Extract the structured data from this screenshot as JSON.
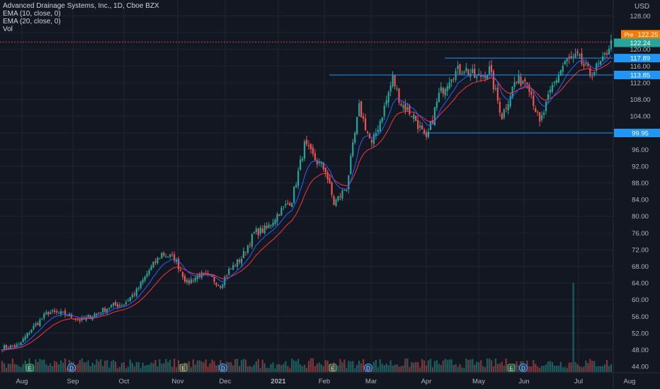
{
  "legend": {
    "title": "Advanced Drainage Systems, Inc., 1D, Cboe BZX",
    "ema10": "EMA (10, close, 0)",
    "ema20": "EMA (20, close, 0)",
    "vol": "Vol"
  },
  "currency": "USD",
  "colors": {
    "background": "#131722",
    "grid": "#1f2433",
    "up": "#26a69a",
    "down": "#ef5350",
    "ema10": "#2962ff",
    "ema20": "#f23645",
    "level": "#2196f3",
    "pre": "#f57c00"
  },
  "chart_data": {
    "type": "candlestick",
    "ylim": [
      42,
      130
    ],
    "y_ticks": [
      "128.00",
      "124.00",
      "120.00",
      "116.00",
      "112.00",
      "108.00",
      "104.00",
      "100.00",
      "96.00",
      "92.00",
      "88.00",
      "84.00",
      "80.00",
      "76.00",
      "72.00",
      "68.00",
      "64.00",
      "60.00",
      "56.00",
      "52.00",
      "48.00",
      "44.00"
    ],
    "x_labels": [
      "Aug",
      "Sep",
      "Oct",
      "Nov",
      "Dec",
      "2021",
      "Feb",
      "Mar",
      "Apr",
      "May",
      "Jun",
      "Jul",
      "Aug"
    ],
    "price_key_points": [
      [
        0,
        48.5
      ],
      [
        8,
        49
      ],
      [
        14,
        53
      ],
      [
        22,
        57
      ],
      [
        30,
        56.5
      ],
      [
        38,
        55
      ],
      [
        46,
        57
      ],
      [
        52,
        58.5
      ],
      [
        58,
        59
      ],
      [
        64,
        62
      ],
      [
        70,
        67
      ],
      [
        76,
        71
      ],
      [
        82,
        70
      ],
      [
        88,
        64
      ],
      [
        94,
        66
      ],
      [
        100,
        65
      ],
      [
        104,
        63.5
      ],
      [
        108,
        67
      ],
      [
        114,
        70
      ],
      [
        120,
        76
      ],
      [
        126,
        77
      ],
      [
        132,
        81
      ],
      [
        138,
        84
      ],
      [
        144,
        97
      ],
      [
        150,
        93
      ],
      [
        154,
        91
      ],
      [
        158,
        83
      ],
      [
        164,
        87
      ],
      [
        170,
        106
      ],
      [
        176,
        97
      ],
      [
        182,
        106
      ],
      [
        186,
        113
      ],
      [
        190,
        107
      ],
      [
        196,
        104
      ],
      [
        202,
        98
      ],
      [
        208,
        109
      ],
      [
        214,
        114
      ],
      [
        220,
        115.5
      ],
      [
        226,
        113
      ],
      [
        232,
        115
      ],
      [
        238,
        104
      ],
      [
        244,
        112
      ],
      [
        250,
        113
      ],
      [
        256,
        102
      ],
      [
        262,
        111
      ],
      [
        268,
        117
      ],
      [
        274,
        118
      ],
      [
        280,
        114
      ],
      [
        286,
        117
      ],
      [
        290,
        122.24
      ]
    ],
    "volume_spike_bar": 272,
    "volume_spike_level": 0.97,
    "horizontal_levels": [
      {
        "value": 117.89,
        "label": "117.89"
      },
      {
        "value": 113.85,
        "label": "113.85"
      },
      {
        "value": 99.95,
        "label": "99.95"
      }
    ],
    "last_price": {
      "value": 122.24,
      "label": "122.24"
    },
    "pre_market": {
      "tag": "Pre",
      "value": 122.25,
      "label": "122.25"
    },
    "earnings_markers": [
      "E",
      "D",
      "E",
      "D",
      "E",
      "D",
      "E",
      "D"
    ]
  }
}
